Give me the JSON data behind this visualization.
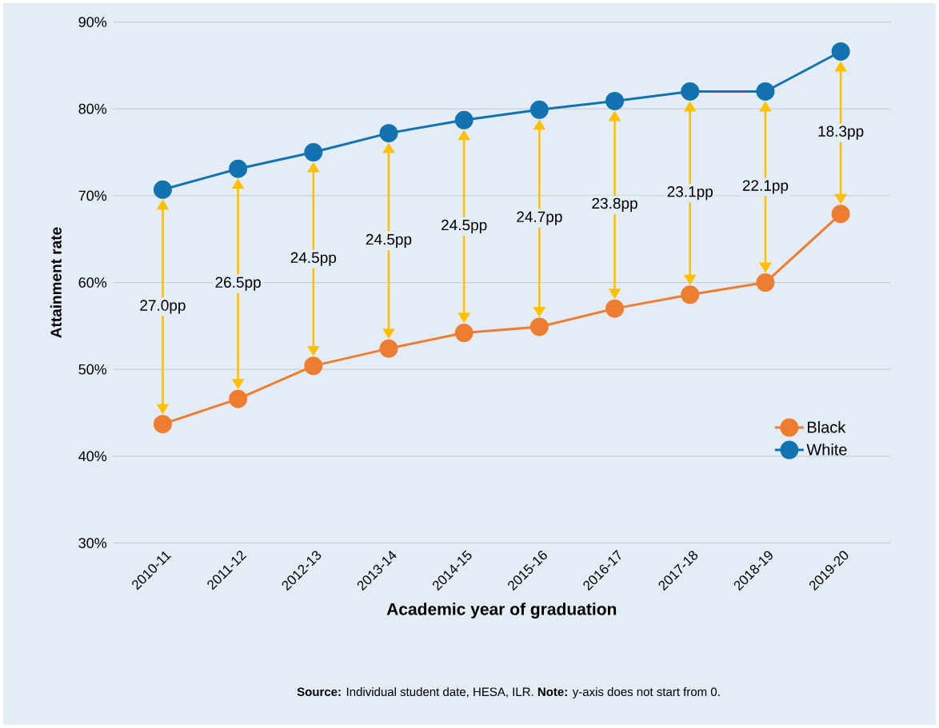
{
  "chart_data": {
    "type": "line",
    "xlabel": "Academic year of graduation",
    "ylabel": "Attainment rate",
    "categories": [
      "2010-11",
      "2011-12",
      "2012-13",
      "2013-14",
      "2014-15",
      "2015-16",
      "2016-17",
      "2017-18",
      "2018-19",
      "2019-20"
    ],
    "series": [
      {
        "name": "Black",
        "color": "#ed7d31",
        "values": [
          43.7,
          46.6,
          50.4,
          52.4,
          54.2,
          54.9,
          57.0,
          58.6,
          60.0,
          67.9
        ]
      },
      {
        "name": "White",
        "color": "#1273b0",
        "values": [
          70.7,
          73.1,
          75.0,
          77.2,
          78.7,
          79.9,
          80.9,
          82.0,
          82.0,
          86.6
        ]
      }
    ],
    "ylim": [
      30,
      90
    ],
    "yticks": [
      {
        "value": 30,
        "label": "30%"
      },
      {
        "value": 40,
        "label": "40%"
      },
      {
        "value": 50,
        "label": "50%"
      },
      {
        "value": 60,
        "label": "60%"
      },
      {
        "value": 70,
        "label": "70%"
      },
      {
        "value": 80,
        "label": "80%"
      },
      {
        "value": 90,
        "label": "90%"
      }
    ],
    "grid": "y",
    "legend": "bottom right",
    "marker": "circle",
    "line_style": "solid",
    "annotations": [
      "27.0pp",
      "26.5pp",
      "24.5pp",
      "24.5pp",
      "24.5pp",
      "24.7pp",
      "23.8pp",
      "23.1pp",
      "22.1pp",
      "18.3pp",
      "**Source:** Individual student date, HESA, ILR.  **Note:** y-axis does not start from 0."
    ]
  }
}
